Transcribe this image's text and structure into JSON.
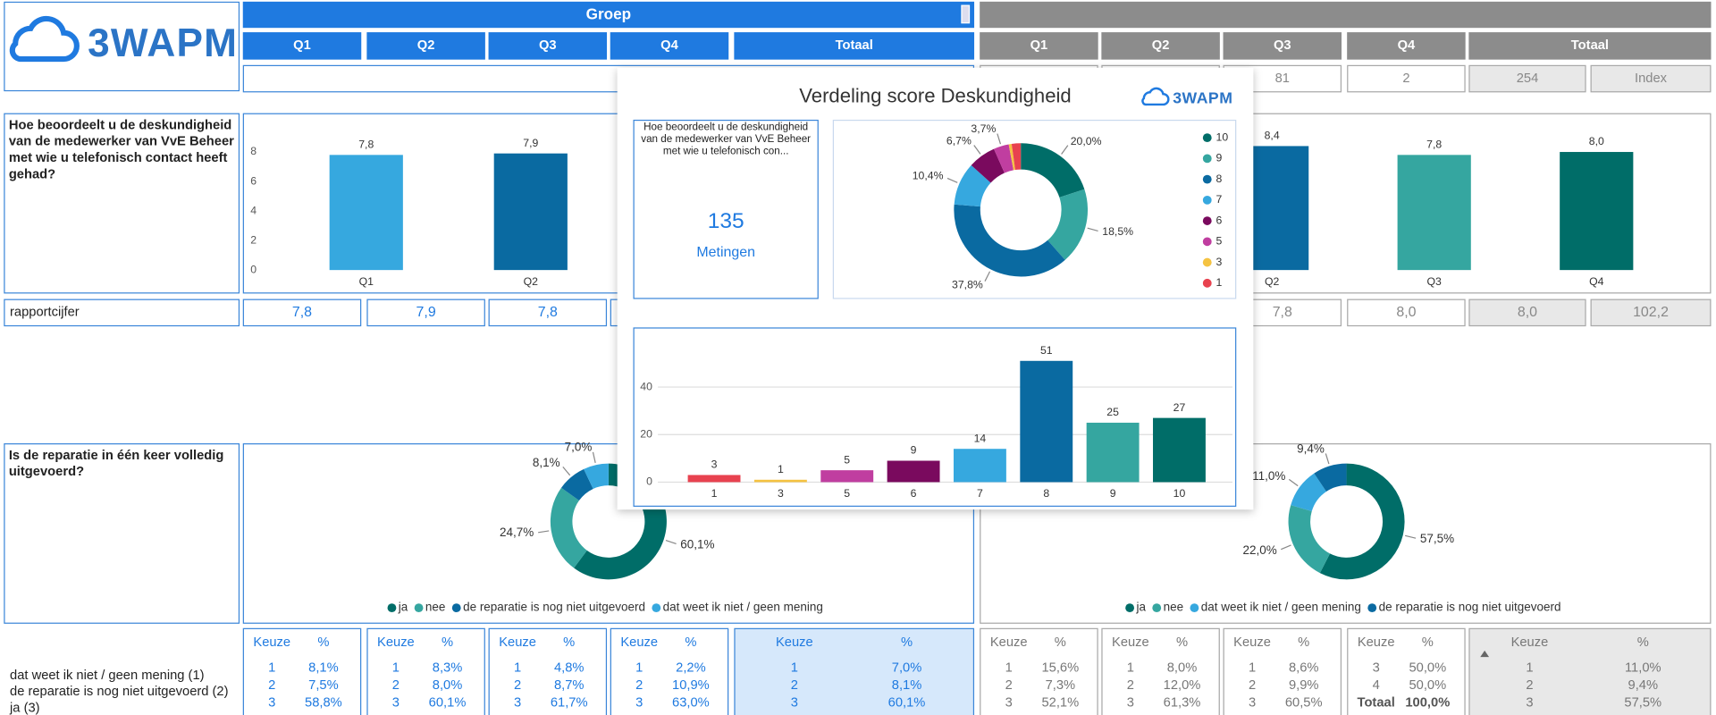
{
  "logo": "3WAPM",
  "header": {
    "left_title": "Groep",
    "left_columns": [
      "Q1",
      "Q2",
      "Q3",
      "Q4",
      "Totaal"
    ],
    "right_columns": [
      "Q1",
      "Q2",
      "Q3",
      "Q4",
      "Totaal"
    ],
    "right_counts": [
      "81",
      "2",
      "254",
      "Index"
    ]
  },
  "question1": {
    "text": "Hoe beoordeelt u de deskundigheid van de medewerker van VvE Beheer met wie u telefonisch contact heeft gehad?",
    "left_chart": {
      "type": "bar",
      "categories": [
        "Q1",
        "Q2"
      ],
      "values": [
        7.8,
        7.9
      ],
      "value_labels": [
        "7,8",
        "7,9"
      ],
      "colors": [
        "#36a8df",
        "#0a6aa1"
      ],
      "ylim": [
        0,
        10
      ],
      "yticks": [
        0,
        2,
        4,
        6,
        8
      ]
    },
    "right_chart": {
      "type": "bar",
      "categories": [
        "Q2",
        "Q3",
        "Q4"
      ],
      "values": [
        8.4,
        7.8,
        8.0
      ],
      "value_labels": [
        "8,4",
        "7,8",
        "8,0"
      ],
      "colors": [
        "#0a6aa1",
        "#35a6a0",
        "#006d68"
      ],
      "ylim": [
        0,
        10
      ]
    }
  },
  "rapportcijfer": {
    "label": "rapportcijfer",
    "left": [
      "7,8",
      "7,9",
      "7,8"
    ],
    "right": [
      "7,8",
      "8,0",
      "8,0",
      "102,2"
    ]
  },
  "question2": {
    "text": "Is de reparatie in één keer volledig uitgevoerd?",
    "left_chart": {
      "type": "donut",
      "categories": [
        "ja",
        "nee",
        "de reparatie is nog niet uitgevoerd",
        "dat weet ik niet / geen mening"
      ],
      "values": [
        60.1,
        24.7,
        8.1,
        7.0
      ],
      "value_labels": [
        "60,1%",
        "24,7%",
        "8,1%",
        "7,0%"
      ],
      "colors": [
        "#006d68",
        "#35a6a0",
        "#0a6aa1",
        "#36a8df"
      ]
    },
    "right_chart": {
      "type": "donut",
      "categories": [
        "ja",
        "nee",
        "dat weet ik niet / geen mening",
        "de reparatie is nog niet uitgevoerd"
      ],
      "values": [
        57.5,
        22.0,
        11.0,
        9.4
      ],
      "value_labels": [
        "57,5%",
        "22,0%",
        "11,0%",
        "9,4%"
      ],
      "colors": [
        "#006d68",
        "#35a6a0",
        "#36a8df",
        "#0a6aa1"
      ]
    }
  },
  "tables": {
    "row_labels": [
      "dat weet ik niet / geen mening (1)",
      "de reparatie is nog niet uitgevoerd (2)",
      "ja (3)"
    ],
    "left": [
      {
        "headers": [
          "Keuze",
          "%"
        ],
        "rows": [
          [
            "1",
            "8,1%"
          ],
          [
            "2",
            "7,5%"
          ],
          [
            "3",
            "58,8%"
          ]
        ]
      },
      {
        "headers": [
          "Keuze",
          "%"
        ],
        "rows": [
          [
            "1",
            "8,3%"
          ],
          [
            "2",
            "8,0%"
          ],
          [
            "3",
            "60,1%"
          ]
        ]
      },
      {
        "headers": [
          "Keuze",
          "%"
        ],
        "rows": [
          [
            "1",
            "4,8%"
          ],
          [
            "2",
            "8,7%"
          ],
          [
            "3",
            "61,7%"
          ]
        ]
      },
      {
        "headers": [
          "Keuze",
          "%"
        ],
        "rows": [
          [
            "1",
            "2,2%"
          ],
          [
            "2",
            "10,9%"
          ],
          [
            "3",
            "63,0%"
          ]
        ]
      },
      {
        "headers": [
          "Keuze",
          "%"
        ],
        "rows": [
          [
            "1",
            "7,0%"
          ],
          [
            "2",
            "8,1%"
          ],
          [
            "3",
            "60,1%"
          ]
        ]
      }
    ],
    "right": [
      {
        "headers": [
          "Keuze",
          "%"
        ],
        "rows": [
          [
            "1",
            "15,6%"
          ],
          [
            "2",
            "7,3%"
          ],
          [
            "3",
            "52,1%"
          ]
        ]
      },
      {
        "headers": [
          "Keuze",
          "%"
        ],
        "rows": [
          [
            "1",
            "8,0%"
          ],
          [
            "2",
            "12,0%"
          ],
          [
            "3",
            "61,3%"
          ]
        ]
      },
      {
        "headers": [
          "Keuze",
          "%"
        ],
        "rows": [
          [
            "1",
            "8,6%"
          ],
          [
            "2",
            "9,9%"
          ],
          [
            "3",
            "60,5%"
          ]
        ]
      },
      {
        "headers": [
          "Keuze",
          "%"
        ],
        "rows": [
          [
            "3",
            "50,0%"
          ],
          [
            "4",
            "50,0%"
          ],
          [
            "Totaal",
            "100,0%"
          ]
        ]
      },
      {
        "headers": [
          "Keuze",
          "%"
        ],
        "rows": [
          [
            "1",
            "11,0%"
          ],
          [
            "2",
            "9,4%"
          ],
          [
            "3",
            "57,5%"
          ]
        ]
      }
    ]
  },
  "popup": {
    "title": "Verdeling score Deskundigheid",
    "logo": "3WAPM",
    "card": {
      "question": "Hoe beoordeelt u de deskundigheid van de medewerker van VvE Beheer met wie u telefonisch con...",
      "count": 135,
      "count_label": "Metingen"
    },
    "donut": {
      "type": "donut",
      "categories": [
        "10",
        "9",
        "8",
        "7",
        "6",
        "5",
        "3",
        "1"
      ],
      "values": [
        20.0,
        18.5,
        37.8,
        10.4,
        6.7,
        3.7,
        0.7,
        2.2
      ],
      "value_labels": [
        "20,0%",
        "18,5%",
        "37,8%",
        "10,4%",
        "6,7%",
        "3,7%",
        null,
        null
      ],
      "colors": [
        "#006d68",
        "#35a6a0",
        "#0a6aa1",
        "#36a8df",
        "#7a0a5e",
        "#c03ea0",
        "#f5c342",
        "#e8424f"
      ]
    },
    "bar": {
      "type": "bar",
      "categories": [
        "1",
        "3",
        "5",
        "6",
        "7",
        "8",
        "9",
        "10"
      ],
      "values": [
        3,
        1,
        5,
        9,
        14,
        51,
        25,
        27
      ],
      "colors": [
        "#e8424f",
        "#f5c342",
        "#c03ea0",
        "#7a0a5e",
        "#36a8df",
        "#0a6aa1",
        "#35a6a0",
        "#006d68"
      ],
      "ylim": [
        0,
        55
      ],
      "yticks": [
        0,
        20,
        40
      ],
      "grid": true
    }
  }
}
